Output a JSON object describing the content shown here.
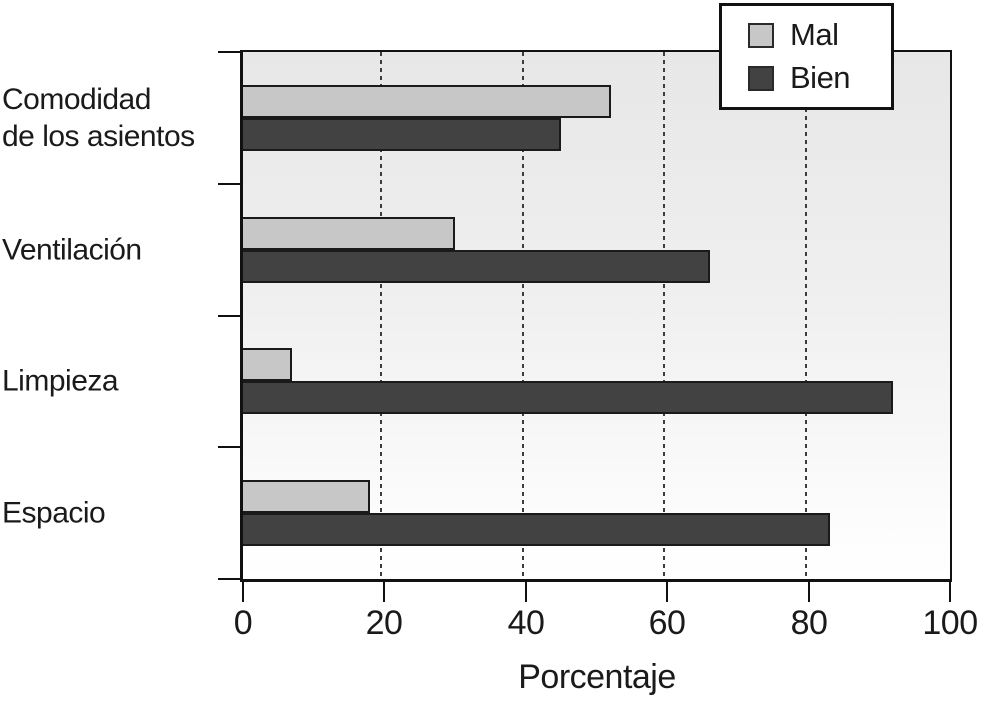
{
  "chart_data": {
    "type": "bar",
    "orientation": "horizontal",
    "title": "",
    "categories": [
      "Comodidad\nde los asientos",
      "Ventilación",
      "Limpieza",
      "Espacio"
    ],
    "series": [
      {
        "name": "Mal",
        "color": "#c7c7c7",
        "values": [
          52,
          30,
          7,
          18
        ]
      },
      {
        "name": "Bien",
        "color": "#424242",
        "values": [
          45,
          66,
          92,
          83
        ]
      }
    ],
    "xlabel": "Porcentaje",
    "xlim": [
      0,
      100
    ],
    "xticks": [
      0,
      20,
      40,
      60,
      80,
      100
    ],
    "grid": "vertical-dashed-at-ticks",
    "legend_position": "top-right",
    "colors": {
      "plot_bg_top": "#e7e7e7",
      "plot_bg_bottom": "#ffffff",
      "axis": "#111111",
      "bar_border": "#1a1a1a",
      "text": "#1a1a1a",
      "legend_bg": "#ffffff"
    }
  }
}
